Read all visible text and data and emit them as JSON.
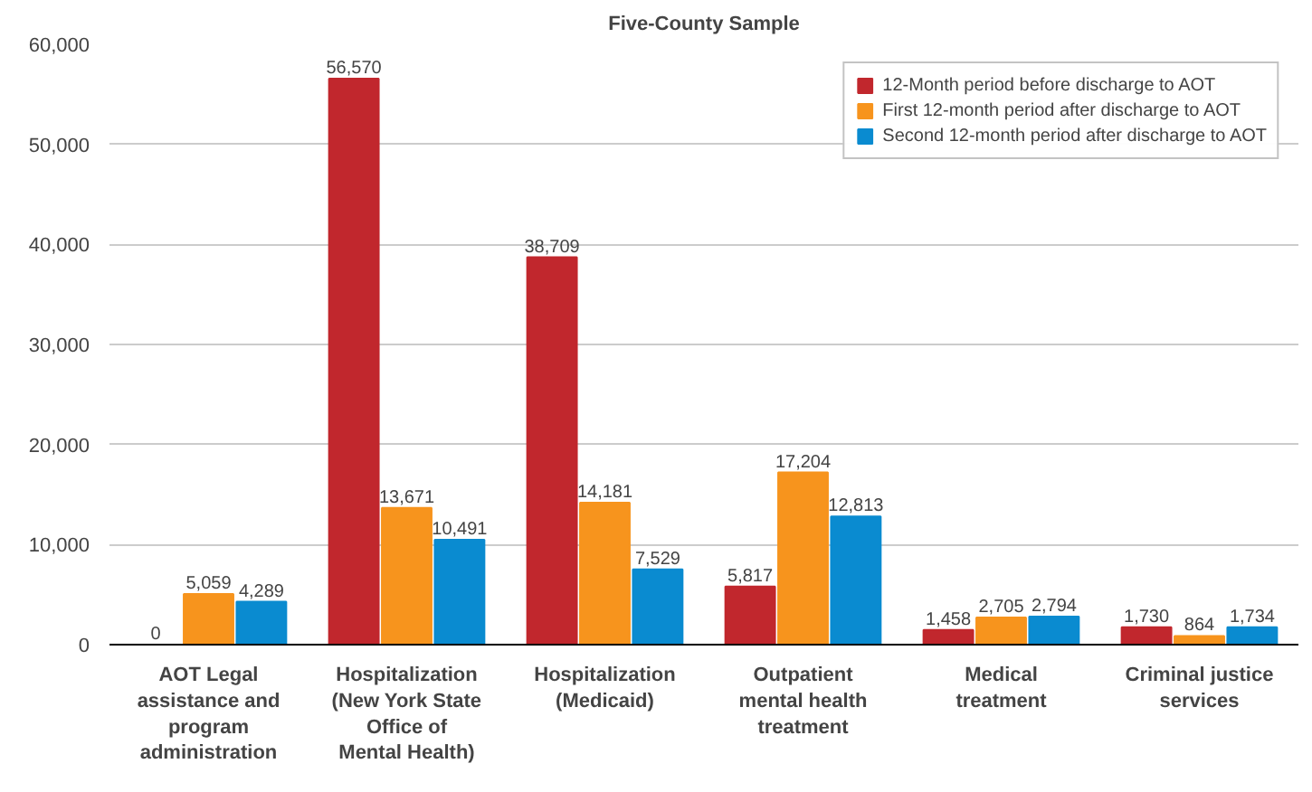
{
  "chart_data": {
    "type": "bar",
    "title": "Five-County Sample",
    "categories": [
      "AOT Legal\nassistance and\nprogram\nadministration",
      "Hospitalization\n(New York State\nOffice of\nMental Health)",
      "Hospitalization\n(Medicaid)",
      "Outpatient\nmental health\ntreatment",
      "Medical\ntreatment",
      "Criminal justice\nservices"
    ],
    "series": [
      {
        "name": "12-Month period before discharge to AOT",
        "color": "#c1272d",
        "values": [
          0,
          56570,
          38709,
          5817,
          1458,
          1730
        ],
        "value_labels": [
          "0",
          "56,570",
          "38,709",
          "5,817",
          "1,458",
          "1,730"
        ]
      },
      {
        "name": "First 12-month period after discharge to AOT",
        "color": "#f7941d",
        "values": [
          5059,
          13671,
          14181,
          17204,
          2705,
          864
        ],
        "value_labels": [
          "5,059",
          "13,671",
          "14,181",
          "17,204",
          "2,705",
          "864"
        ]
      },
      {
        "name": "Second 12-month period after discharge to AOT",
        "color": "#0a8bd0",
        "values": [
          4289,
          10491,
          7529,
          12813,
          2794,
          1734
        ],
        "value_labels": [
          "4,289",
          "10,491",
          "7,529",
          "12,813",
          "2,794",
          "1,734"
        ]
      }
    ],
    "ylim": [
      0,
      60000
    ],
    "yticks": [
      {
        "value": 0,
        "label": "0"
      },
      {
        "value": 10000,
        "label": "10,000"
      },
      {
        "value": 20000,
        "label": "20,000"
      },
      {
        "value": 30000,
        "label": "30,000"
      },
      {
        "value": 40000,
        "label": "40,000"
      },
      {
        "value": 50000,
        "label": "50,000"
      },
      {
        "value": 60000,
        "label": "60,000"
      }
    ],
    "grid": "y",
    "legend": "top right"
  }
}
